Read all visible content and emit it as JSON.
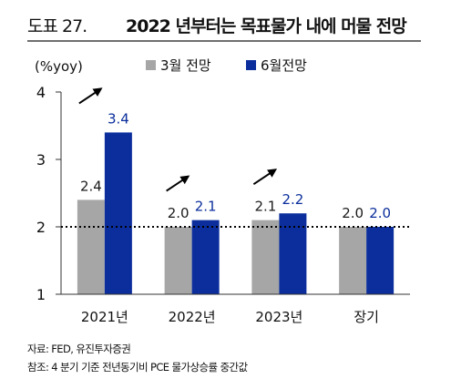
{
  "header": {
    "figure_number": "도표 27.",
    "title": "2022 년부터는 목표물가 내에 머물 전망"
  },
  "chart_data": {
    "type": "bar",
    "unit_label": "(%yoy)",
    "categories": [
      "2021년",
      "2022년",
      "2023년",
      "장기"
    ],
    "series": [
      {
        "name": "3월 전망",
        "color": "#a6a6a6",
        "values": [
          2.4,
          2.0,
          2.1,
          2.0
        ],
        "labels": [
          "2.4",
          "2.0",
          "2.1",
          "2.0"
        ]
      },
      {
        "name": "6월전망",
        "color": "#0b2e9c",
        "values": [
          3.4,
          2.1,
          2.2,
          2.0
        ],
        "labels": [
          "3.4",
          "2.1",
          "2.2",
          "2.0"
        ]
      }
    ],
    "ylim": [
      1,
      4
    ],
    "yticks": [
      1,
      2,
      3,
      4
    ],
    "reference_line": {
      "value": 2,
      "style": "dotted",
      "color": "#000000"
    },
    "label_colors": [
      "#1a1a1a",
      "#0b2e9c"
    ],
    "arrows_up_right_on_categories": [
      "2021년",
      "2022년",
      "2023년"
    ],
    "grid": false,
    "legend_position": "top"
  },
  "footnotes": {
    "source": "자료: FED, 유진투자증권",
    "note": "참조: 4 분기 기준 전년동기비 PCE 물가상승률 중간값"
  }
}
